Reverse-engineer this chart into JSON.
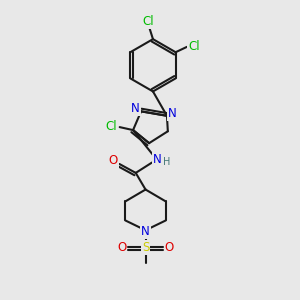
{
  "bg_color": "#e8e8e8",
  "bond_color": "#1a1a1a",
  "bond_width": 1.5,
  "atom_colors": {
    "C": "#1a1a1a",
    "N": "#0000dd",
    "O": "#dd0000",
    "S": "#cccc00",
    "Cl": "#00bb00",
    "H": "#447777"
  },
  "font_size": 8.5,
  "font_size_h": 7.0
}
